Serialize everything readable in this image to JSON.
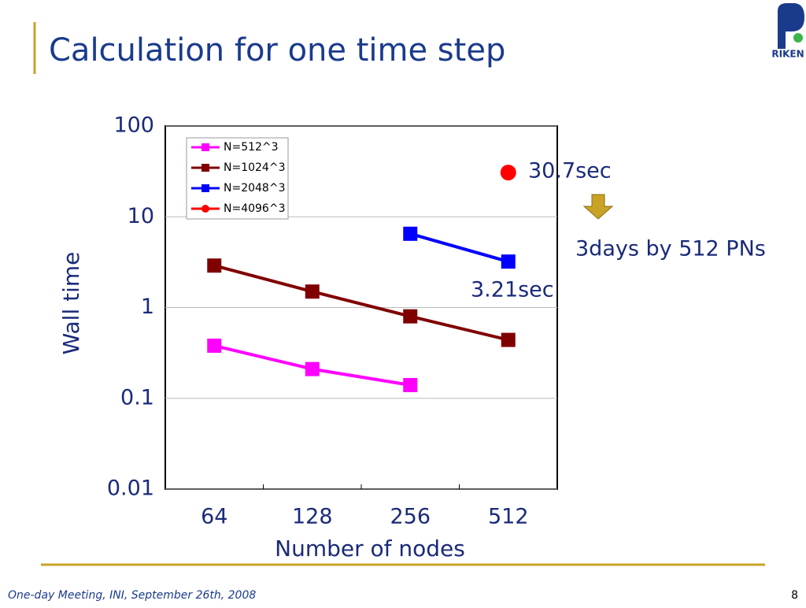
{
  "chart_data": {
    "type": "line",
    "title": "Calculation for one time step",
    "x_label": "Number of nodes",
    "y_label": "Wall time",
    "categories": [
      "64",
      "128",
      "256",
      "512"
    ],
    "series": [
      {
        "name": "N=512^3",
        "color": "#ff00ff",
        "marker": "square",
        "values": [
          0.38,
          0.21,
          0.14,
          null
        ]
      },
      {
        "name": "N=1024^3",
        "color": "#800000",
        "marker": "square",
        "values": [
          2.9,
          1.5,
          0.8,
          0.44
        ]
      },
      {
        "name": "N=2048^3",
        "color": "#0000ff",
        "marker": "square",
        "values": [
          null,
          null,
          6.5,
          3.21
        ]
      },
      {
        "name": "N=4096^3",
        "color": "#ff0000",
        "marker": "circle",
        "values": [
          null,
          null,
          null,
          30.7
        ]
      }
    ],
    "ylim": [
      0.01,
      100
    ],
    "yticks": [
      0.01,
      0.1,
      1,
      10,
      100
    ],
    "log_y": true,
    "grid": true,
    "legend": "upper-left",
    "annotations": [
      "30.7sec",
      "3days by 512 PNs",
      "3.21sec"
    ]
  },
  "footer": "One-day Meeting, INI, September 26th, 2008",
  "page_number": "8",
  "logo": "RIKEN"
}
